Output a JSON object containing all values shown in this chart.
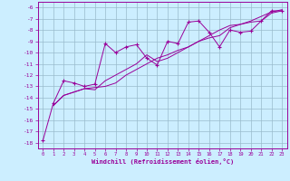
{
  "xlabel": "Windchill (Refroidissement éolien,°C)",
  "xlim": [
    -0.5,
    23.5
  ],
  "ylim": [
    -18.5,
    -5.5
  ],
  "yticks": [
    -18,
    -17,
    -16,
    -15,
    -14,
    -13,
    -12,
    -11,
    -10,
    -9,
    -8,
    -7,
    -6
  ],
  "ytick_labels": [
    "-18",
    "-17",
    "-16",
    "-15",
    "-14",
    "-13",
    "-12",
    "-11",
    "-10",
    "-9",
    "-8",
    "-7",
    "-6"
  ],
  "xticks": [
    0,
    1,
    2,
    3,
    4,
    5,
    6,
    7,
    8,
    9,
    10,
    11,
    12,
    13,
    14,
    15,
    16,
    17,
    18,
    19,
    20,
    21,
    22,
    23
  ],
  "xtick_labels": [
    "0",
    "1",
    "2",
    "3",
    "4",
    "5",
    "6",
    "7",
    "8",
    "9",
    "10",
    "11",
    "12",
    "13",
    "14",
    "15",
    "16",
    "17",
    "18",
    "19",
    "20",
    "21",
    "22",
    "23"
  ],
  "line_color": "#990099",
  "bg_color": "#cceeff",
  "grid_color": "#99bbcc",
  "series1_x": [
    0,
    1,
    2,
    3,
    4,
    5,
    6,
    7,
    8,
    9,
    10,
    11,
    12,
    13,
    14,
    15,
    16,
    17,
    18,
    19,
    20,
    21,
    22,
    23
  ],
  "series1_y": [
    -17.8,
    -14.5,
    -12.5,
    -12.7,
    -13.0,
    -12.8,
    -9.2,
    -10.0,
    -9.5,
    -9.3,
    -10.5,
    -11.1,
    -9.0,
    -9.2,
    -7.3,
    -7.2,
    -8.2,
    -9.5,
    -8.0,
    -8.2,
    -8.1,
    -7.2,
    -6.3,
    -6.3
  ],
  "series2_x": [
    1,
    2,
    3,
    4,
    5,
    6,
    7,
    8,
    9,
    10,
    11,
    12,
    13,
    14,
    15,
    16,
    17,
    18,
    19,
    20,
    21,
    22,
    23
  ],
  "series2_y": [
    -14.7,
    -13.8,
    -13.5,
    -13.2,
    -13.3,
    -12.5,
    -12.0,
    -11.5,
    -11.0,
    -10.2,
    -10.8,
    -10.5,
    -10.0,
    -9.5,
    -9.0,
    -8.5,
    -8.0,
    -7.6,
    -7.5,
    -7.3,
    -7.2,
    -6.5,
    -6.3
  ],
  "series3_x": [
    1,
    2,
    3,
    4,
    5,
    6,
    7,
    8,
    9,
    10,
    11,
    12,
    13,
    14,
    15,
    16,
    17,
    18,
    19,
    20,
    21,
    22,
    23
  ],
  "series3_y": [
    -14.7,
    -13.8,
    -13.5,
    -13.2,
    -13.1,
    -13.0,
    -12.7,
    -12.0,
    -11.5,
    -11.0,
    -10.5,
    -10.2,
    -9.8,
    -9.5,
    -9.0,
    -8.7,
    -8.5,
    -7.8,
    -7.5,
    -7.2,
    -6.8,
    -6.4,
    -6.2
  ]
}
